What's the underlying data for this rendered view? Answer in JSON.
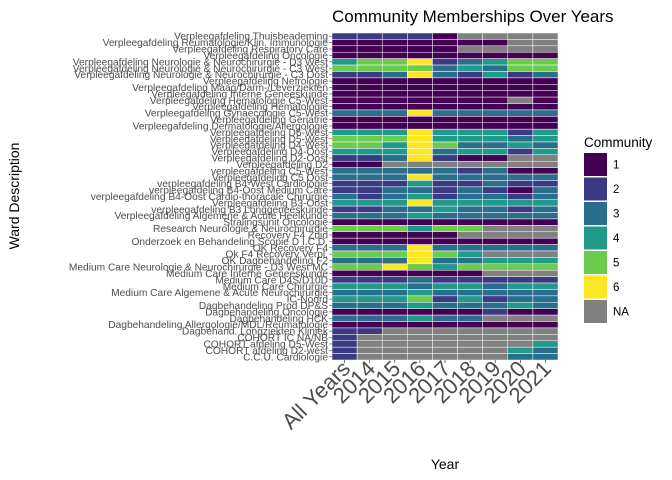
{
  "chart_data": {
    "type": "heatmap",
    "title": "Community Memberships Over Years",
    "xlabel": "Year",
    "ylabel": "Ward Description",
    "x": [
      "All Years",
      "2014",
      "2015",
      "2016",
      "2017",
      "2018",
      "2019",
      "2020",
      "2021"
    ],
    "y": [
      "Verpleegafdeling Thuisbeademing",
      "Verpleegafdeling Reumatologie/Klin. Immunologie",
      "Verpleegafdeling Respiratory Care",
      "Verpleegafdeling Oncologie",
      "Verpleegafdeling Neurologie & Neurochirurgie - D3 West",
      "Verpleegafdeling Neurologie & Neurochirurgie - C3 West",
      "Verpleegafdeling Neurologie & Neurochirurgie - C3 Oost",
      "Verpleegafdeling Nefrologie",
      "Verpleegafdeling Maag/Darm-/Leverziekten",
      "Verpleegafdeling Interne Geneeskunde",
      "Verpleegafdeling Hematologie C5-West",
      "Verpleegafdeling Hematologie",
      "Verpleegafdeling Gynaecologie C5-West",
      "Verpleegafdeling Geriatrie",
      "Verpleegafdeling Dermatologie/Allergologie",
      "Verpleegafdeling D6-West",
      "Verpleegafdeling D5-West",
      "Verpleegafdeling D4-West",
      "Verpleegafdeling D4-Oost",
      "Verpleegafdeling D2-Oost",
      "Verpleegafdeling D2",
      "verpleegafdeling C5-West",
      "Verpleegafdeling C5 Oost",
      "verpleegafdeling B4-West Cardiologie",
      "verpleegafdeling B4-Oost Medium Care",
      "verpleegafdeling B4-Oost Cardio-thoracale Chirurgie",
      "Verpleegafdeling B3-Oost",
      "verpleegafdeling B3 Longgeneeskunde",
      "Verpleegafdeling Algemene & Acute Heelkunde",
      "Stralingsunit Oncologie",
      "Research Neurologie & Neurochirurgie",
      "Recovery F4 Zuid",
      "Onderzoek en Behandeling Scopie D I.C.D.",
      "OK Recovery F4",
      "Ok F4 Recovery Verpl.",
      "OK Dagbehandeling F2",
      "Medium Care Neurologie & Neurochirurgie - D3 West MC",
      "Medium Care Interne Geneeskunde",
      "Medium Care D4S/D10D",
      "Medium Care Chirurgie",
      "Medium Care Algemene & Acute Neurochirurgie",
      "IC-Noord",
      "Dagbehandeling Prod DP&S",
      "Dagbehandeling Oncologie",
      "Dagbehandeling HCK",
      "Dagbehandeling Allergologie/MDL/Reumatologie",
      "Dagbehand. Longziekten Kliniek",
      "COHORT IC NA/NB",
      "COHORT afdeling D5-West",
      "COHORT afdeling D2-west",
      "C.C.U. Cardiologie"
    ],
    "community_levels": [
      "1",
      "2",
      "3",
      "4",
      "5",
      "6",
      "NA"
    ],
    "values": [
      [
        "2",
        "2",
        "2",
        "2",
        "1",
        "NA",
        "NA",
        "NA",
        "NA"
      ],
      [
        "1",
        "1",
        "1",
        "1",
        "1",
        "1",
        "1",
        "NA",
        "NA"
      ],
      [
        "1",
        "1",
        "1",
        "1",
        "1",
        "NA",
        "NA",
        "NA",
        "NA"
      ],
      [
        "1",
        "1",
        "1",
        "1",
        "1",
        "1",
        "1",
        "1",
        "1"
      ],
      [
        "4",
        "5",
        "5",
        "6",
        "2",
        "3",
        "4",
        "5",
        "5"
      ],
      [
        "5",
        "5",
        "5",
        "5",
        "3",
        "4",
        "3",
        "5",
        "5"
      ],
      [
        "2",
        "2",
        "3",
        "6",
        "3",
        "2",
        "4",
        "2",
        "3"
      ],
      [
        "1",
        "1",
        "1",
        "1",
        "1",
        "1",
        "1",
        "1",
        "1"
      ],
      [
        "1",
        "1",
        "1",
        "1",
        "1",
        "1",
        "1",
        "1",
        "1"
      ],
      [
        "1",
        "1",
        "1",
        "1",
        "1",
        "1",
        "1",
        "1",
        "1"
      ],
      [
        "1",
        "1",
        "1",
        "1",
        "1",
        "1",
        "1",
        "NA",
        "1"
      ],
      [
        "1",
        "1",
        "1",
        "1",
        "1",
        "1",
        "1",
        "1",
        "1"
      ],
      [
        "3",
        "3",
        "3",
        "6",
        "3",
        "3",
        "3",
        "3",
        "3"
      ],
      [
        "1",
        "1",
        "1",
        "1",
        "1",
        "1",
        "1",
        "1",
        "1"
      ],
      [
        "1",
        "1",
        "1",
        "1",
        "1",
        "1",
        "1",
        "1",
        "1"
      ],
      [
        "4",
        "4",
        "4",
        "6",
        "4",
        "4",
        "4",
        "2",
        "4"
      ],
      [
        "5",
        "5",
        "5",
        "6",
        "4",
        "4",
        "4",
        "3",
        "4"
      ],
      [
        "5",
        "5",
        "4",
        "6",
        "5",
        "3",
        "3",
        "4",
        "3"
      ],
      [
        "4",
        "4",
        "4",
        "6",
        "3",
        "4",
        "4",
        "2",
        "4"
      ],
      [
        "2",
        "2",
        "3",
        "6",
        "2",
        "1",
        "1",
        "NA",
        "NA"
      ],
      [
        "1",
        "1",
        "NA",
        "NA",
        "NA",
        "NA",
        "NA",
        "NA",
        "NA"
      ],
      [
        "3",
        "3",
        "3",
        "3",
        "3",
        "2",
        "3",
        "1",
        "1"
      ],
      [
        "3",
        "3",
        "3",
        "6",
        "3",
        "3",
        "3",
        "3",
        "3"
      ],
      [
        "2",
        "2",
        "2",
        "4",
        "2",
        "2",
        "3",
        "2",
        "2"
      ],
      [
        "2",
        "2",
        "3",
        "3",
        "2",
        "3",
        "2",
        "1",
        "3"
      ],
      [
        "3",
        "2",
        "3",
        "4",
        "2",
        "3",
        "3",
        "2",
        "3"
      ],
      [
        "4",
        "4",
        "4",
        "6",
        "4",
        "4",
        "4",
        "4",
        "4"
      ],
      [
        "2",
        "2",
        "3",
        "3",
        "4",
        "3",
        "3",
        "2",
        "3"
      ],
      [
        "3",
        "3",
        "3",
        "4",
        "3",
        "3",
        "3",
        "3",
        "3"
      ],
      [
        "1",
        "1",
        "1",
        "1",
        "1",
        "1",
        "1",
        "1",
        "1"
      ],
      [
        "5",
        "5",
        "5",
        "4",
        "5",
        "5",
        "NA",
        "NA",
        "NA"
      ],
      [
        "1",
        "1",
        "1",
        "1",
        "1",
        "NA",
        "NA",
        "NA",
        "NA"
      ],
      [
        "1",
        "1",
        "1",
        "1",
        "1",
        "1",
        "1",
        "1",
        "1"
      ],
      [
        "3",
        "3",
        "3",
        "6",
        "3",
        "3",
        "3",
        "3",
        "3"
      ],
      [
        "5",
        "5",
        "5",
        "6",
        "5",
        "4",
        "NA",
        "NA",
        "NA"
      ],
      [
        "3",
        "3",
        "3",
        "6",
        "3",
        "3",
        "4",
        "4",
        "4"
      ],
      [
        "5",
        "5",
        "6",
        "5",
        "4",
        "5",
        "5",
        "5",
        "5"
      ],
      [
        "1",
        "1",
        "1",
        "1",
        "1",
        "1",
        "NA",
        "NA",
        "NA"
      ],
      [
        "2",
        "2",
        "2",
        "3",
        "2",
        "2",
        "2",
        "2",
        "2"
      ],
      [
        "4",
        "4",
        "4",
        "3",
        "4",
        "4",
        "3",
        "4",
        "4"
      ],
      [
        "3",
        "3",
        "3",
        "4",
        "3",
        "3",
        "3",
        "3",
        "3"
      ],
      [
        "4",
        "4",
        "4",
        "5",
        "2",
        "4",
        "2",
        "3",
        "3"
      ],
      [
        "3",
        "3",
        "3",
        "4",
        "3",
        "3",
        "3",
        "4",
        "3"
      ],
      [
        "1",
        "1",
        "1",
        "1",
        "1",
        "1",
        "2",
        "1",
        "1"
      ],
      [
        "3",
        "3",
        "3",
        "4",
        "3",
        "3",
        "NA",
        "NA",
        "NA"
      ],
      [
        "1",
        "1",
        "1",
        "1",
        "1",
        "1",
        "1",
        "1",
        "1"
      ],
      [
        "2",
        "2",
        "NA",
        "NA",
        "NA",
        "NA",
        "NA",
        "NA",
        "NA"
      ],
      [
        "2",
        "NA",
        "NA",
        "NA",
        "NA",
        "NA",
        "NA",
        "NA",
        "NA"
      ],
      [
        "2",
        "NA",
        "NA",
        "NA",
        "NA",
        "NA",
        "NA",
        "NA",
        "4"
      ],
      [
        "2",
        "NA",
        "NA",
        "NA",
        "NA",
        "NA",
        "NA",
        "4",
        "3"
      ],
      [
        "2",
        "NA",
        "NA",
        "NA",
        "NA",
        "NA",
        "NA",
        "3",
        "3"
      ]
    ],
    "colors": {
      "1": "#440154",
      "2": "#3B3A84",
      "3": "#2A6E8E",
      "4": "#21998B",
      "5": "#6CCB4E",
      "6": "#FDE725",
      "NA": "#808080"
    },
    "legend": {
      "title": "Community",
      "placement": "right"
    }
  }
}
